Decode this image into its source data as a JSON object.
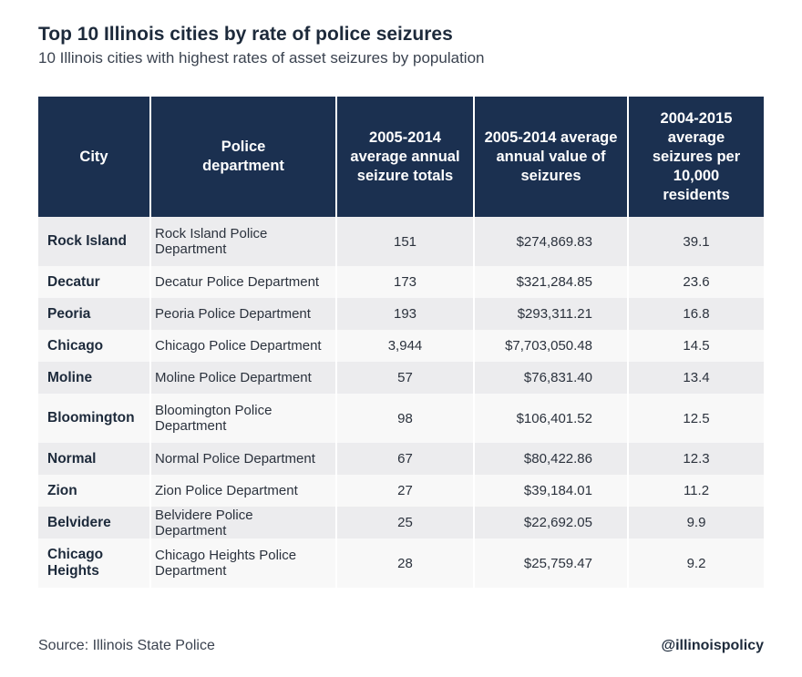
{
  "chart_data": {
    "type": "table",
    "title": "Top 10 Illinois cities by rate of police seizures",
    "subtitle": "10 Illinois cities with highest rates of asset seizures by population",
    "columns": [
      "City",
      "Police department",
      "2005-2014 average annual seizure totals",
      "2005-2014 average annual value of seizures",
      "2004-2015 average seizures per 10,000 residents"
    ],
    "rows": [
      {
        "city": "Rock Island",
        "department": "Rock Island Police Department",
        "seizures": "151",
        "value": "$274,869.83",
        "rate": "39.1"
      },
      {
        "city": "Decatur",
        "department": "Decatur Police Department",
        "seizures": "173",
        "value": "$321,284.85",
        "rate": "23.6"
      },
      {
        "city": "Peoria",
        "department": "Peoria Police Department",
        "seizures": "193",
        "value": "$293,311.21",
        "rate": "16.8"
      },
      {
        "city": "Chicago",
        "department": "Chicago Police Department",
        "seizures": "3,944",
        "value": "$7,703,050.48",
        "rate": "14.5"
      },
      {
        "city": "Moline",
        "department": "Moline Police Department",
        "seizures": "57",
        "value": "$76,831.40",
        "rate": "13.4"
      },
      {
        "city": "Bloomington",
        "department": "Bloomington Police Department",
        "seizures": "98",
        "value": "$106,401.52",
        "rate": "12.5"
      },
      {
        "city": "Normal",
        "department": "Normal Police Department",
        "seizures": "67",
        "value": "$80,422.86",
        "rate": "12.3"
      },
      {
        "city": "Zion",
        "department": "Zion Police Department",
        "seizures": "27",
        "value": "$39,184.01",
        "rate": "11.2"
      },
      {
        "city": "Belvidere",
        "department": "Belvidere Police Department",
        "seizures": "25",
        "value": "$22,692.05",
        "rate": "9.9"
      },
      {
        "city": "Chicago Heights",
        "department": "Chicago Heights Police Department",
        "seizures": "28",
        "value": "$25,759.47",
        "rate": "9.2"
      }
    ]
  },
  "footer": {
    "source": "Source: Illinois State Police",
    "handle": "@illinoispolicy"
  },
  "colors": {
    "header_bg": "#1b3050",
    "row_odd": "#ececee",
    "row_even": "#f8f8f8"
  }
}
